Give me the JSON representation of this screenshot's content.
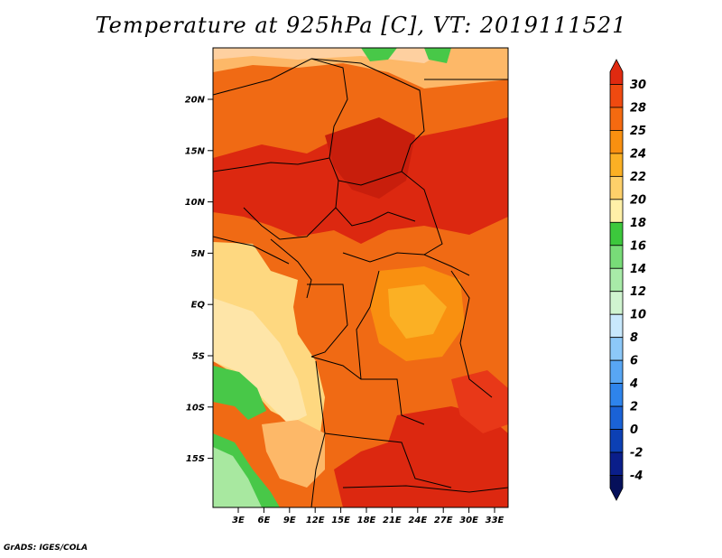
{
  "title": "Temperature at 925hPa [C], VT: 2019111521",
  "credit": "GrADS: IGES/COLA",
  "map": {
    "lat_ticks": [
      "20N",
      "15N",
      "10N",
      "5N",
      "EQ",
      "5S",
      "10S",
      "15S"
    ],
    "lon_ticks": [
      "3E",
      "6E",
      "9E",
      "12E",
      "15E",
      "18E",
      "21E",
      "24E",
      "27E",
      "30E",
      "33E"
    ]
  },
  "colorbar": {
    "labels": [
      "30",
      "28",
      "25",
      "24",
      "22",
      "20",
      "18",
      "16",
      "14",
      "12",
      "10",
      "8",
      "6",
      "4",
      "2",
      "0",
      "-2",
      "-4"
    ],
    "colors": [
      "#e02a10",
      "#ef4a10",
      "#f56a10",
      "#f99010",
      "#fbb024",
      "#fed06a",
      "#fff0a8",
      "#3cc83c",
      "#78dc78",
      "#a8eba8",
      "#d0f4d0",
      "#c8e8fc",
      "#8cc8f8",
      "#58a6f4",
      "#2e84ec",
      "#1a62d6",
      "#0c40b4",
      "#0a1e8a",
      "#06105a"
    ]
  },
  "colors": {
    "zone_red": "#dc2810",
    "zone_orange": "#f06a14",
    "zone_sand": "#fed880",
    "zone_green": "#48c848",
    "zone_lightgreen": "#a8e8a0"
  }
}
